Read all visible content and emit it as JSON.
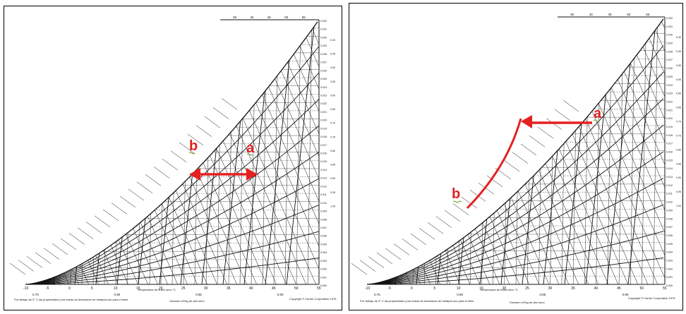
{
  "colors": {
    "arrow": "#e62020",
    "ink": "#111111",
    "frame": "#000000"
  },
  "panels": [
    {
      "point_a": "a",
      "point_b": "b",
      "x_axis_title": "Temperatura de bulbo seco °C",
      "footnote": "Por debajo de 0° C las propiedades y las líneas de desviación de entalpía son para el hielo",
      "volume_label": "Volumen m³/kg de aire seco",
      "copyright": "Copyright © Carrier Corporation 1975",
      "temp_ticks": [
        "-10",
        "-5",
        "0",
        "5",
        "10",
        "15",
        "20",
        "25",
        "30",
        "35",
        "40",
        "45",
        "50",
        "55"
      ],
      "volume_ticks": [
        "0.75",
        "0.80",
        "0.85",
        "0.90"
      ],
      "top_ticks": [
        "35",
        "40",
        "45",
        "50",
        "55"
      ],
      "humidity_ticks": [
        "0.032",
        "0.031",
        "0.030",
        "0.029",
        "0.028",
        "0.027",
        "0.026",
        "0.025",
        "0.024",
        "0.023",
        "0.022",
        "0.021",
        "0.020",
        "0.019",
        "0.018",
        "0.017",
        "0.016",
        "0.015",
        "0.014",
        "0.013",
        "0.012",
        "0.011",
        "0.010",
        "0.009",
        "0.008",
        "0.007",
        "0.006",
        "0.005",
        "0.004",
        "0.003",
        "0.002",
        "0.001",
        "0.000"
      ],
      "shr_ticks": [
        "0.40",
        "0.45",
        "0.50",
        "0.55",
        "0.60",
        "0.65",
        "0.70",
        "0.75",
        "0.80",
        "0.85",
        "0.90",
        "0.95",
        "1.00"
      ]
    },
    {
      "point_a": "a",
      "point_b": "b",
      "x_axis_title": "Temperatura de bulbo seco °C",
      "footnote": "Por debajo de 0° C las propiedades y las líneas de desviación de entalpía son para el hielo",
      "volume_label": "Volumen m³/kg de aire seco",
      "copyright": "Copyright © Carrier Corporation 1975",
      "temp_ticks": [
        "-10",
        "-5",
        "0",
        "5",
        "10",
        "15",
        "20",
        "25",
        "30",
        "35",
        "40",
        "45",
        "50",
        "55"
      ],
      "volume_ticks": [
        "0.75",
        "0.80",
        "0.85",
        "0.90"
      ],
      "top_ticks": [
        "35",
        "40",
        "45",
        "50",
        "55"
      ],
      "humidity_ticks": [
        "0.032",
        "0.031",
        "0.030",
        "0.029",
        "0.028",
        "0.027",
        "0.026",
        "0.025",
        "0.024",
        "0.023",
        "0.022",
        "0.021",
        "0.020",
        "0.019",
        "0.018",
        "0.017",
        "0.016",
        "0.015",
        "0.014",
        "0.013",
        "0.012",
        "0.011",
        "0.010",
        "0.009",
        "0.008",
        "0.007",
        "0.006",
        "0.005",
        "0.004",
        "0.003",
        "0.002",
        "0.001",
        "0.000"
      ],
      "shr_ticks": [
        "0.40",
        "0.45",
        "0.50",
        "0.55",
        "0.60",
        "0.65",
        "0.70",
        "0.75",
        "0.80",
        "0.85",
        "0.90",
        "0.95",
        "1.00"
      ]
    }
  ]
}
